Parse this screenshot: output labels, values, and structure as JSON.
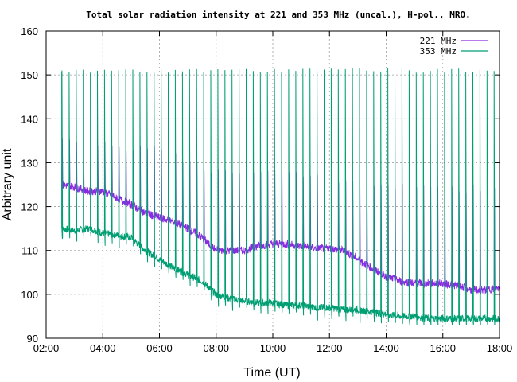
{
  "chart_data": {
    "type": "line",
    "title": "Total solar radiation intensity at 221 and 353 MHz (uncal.), H-pol., MRO.",
    "xlabel": "Time (UT)",
    "ylabel": "Arbitrary unit",
    "xlim": [
      2.0,
      18.0
    ],
    "ylim": [
      90,
      160
    ],
    "xticks": [
      "02:00",
      "04:00",
      "06:00",
      "08:00",
      "10:00",
      "12:00",
      "14:00",
      "16:00",
      "18:00"
    ],
    "yticks": [
      90,
      100,
      110,
      120,
      130,
      140,
      150,
      160
    ],
    "grid": true,
    "legend_position": "top-right",
    "series": [
      {
        "name": "221 MHz",
        "color": "#8a2be2",
        "baseline": [
          [
            2.55,
            125
          ],
          [
            3.0,
            124.5
          ],
          [
            3.5,
            123.5
          ],
          [
            4.0,
            123.5
          ],
          [
            4.5,
            122
          ],
          [
            5.0,
            120.5
          ],
          [
            5.5,
            118.5
          ],
          [
            6.0,
            117.5
          ],
          [
            6.5,
            116.5
          ],
          [
            7.0,
            115
          ],
          [
            7.5,
            113
          ],
          [
            8.0,
            110
          ],
          [
            8.5,
            110
          ],
          [
            9.0,
            110
          ],
          [
            9.5,
            111
          ],
          [
            10.0,
            111.5
          ],
          [
            10.5,
            111.5
          ],
          [
            11.0,
            111
          ],
          [
            11.5,
            110.5
          ],
          [
            12.0,
            110.5
          ],
          [
            12.5,
            110
          ],
          [
            13.0,
            108
          ],
          [
            13.5,
            106
          ],
          [
            14.0,
            104
          ],
          [
            14.5,
            103
          ],
          [
            15.0,
            102.5
          ],
          [
            15.5,
            102.5
          ],
          [
            16.0,
            102.5
          ],
          [
            16.5,
            102
          ],
          [
            17.0,
            101
          ],
          [
            17.5,
            101
          ],
          [
            18.0,
            101.5
          ]
        ],
        "spike_top": [
          [
            2.55,
            136
          ],
          [
            4.0,
            134
          ],
          [
            6.0,
            133
          ],
          [
            7.0,
            130
          ],
          [
            8.0,
            128
          ],
          [
            10.0,
            128
          ],
          [
            12.0,
            126
          ],
          [
            14.0,
            125
          ],
          [
            16.0,
            124
          ],
          [
            18.0,
            124
          ]
        ]
      },
      {
        "name": "353 MHz",
        "color": "#009e73",
        "baseline": [
          [
            2.55,
            115
          ],
          [
            3.0,
            114.5
          ],
          [
            3.5,
            115
          ],
          [
            4.0,
            114
          ],
          [
            4.5,
            113.5
          ],
          [
            5.0,
            113
          ],
          [
            5.5,
            110
          ],
          [
            6.0,
            108
          ],
          [
            6.5,
            106
          ],
          [
            7.0,
            104.5
          ],
          [
            7.5,
            103
          ],
          [
            8.0,
            100
          ],
          [
            8.5,
            99
          ],
          [
            9.0,
            98.5
          ],
          [
            9.5,
            98
          ],
          [
            10.0,
            98
          ],
          [
            10.5,
            97.5
          ],
          [
            11.0,
            97.5
          ],
          [
            11.5,
            97
          ],
          [
            12.0,
            97
          ],
          [
            12.5,
            96.5
          ],
          [
            13.0,
            96.5
          ],
          [
            13.5,
            96
          ],
          [
            14.0,
            95.5
          ],
          [
            14.5,
            95
          ],
          [
            15.0,
            95
          ],
          [
            15.5,
            94.5
          ],
          [
            16.0,
            94.5
          ],
          [
            16.5,
            94.5
          ],
          [
            17.0,
            94.5
          ],
          [
            17.5,
            94.5
          ],
          [
            18.0,
            94.5
          ]
        ],
        "spike_top": 151,
        "spike_bottom": 93
      }
    ]
  }
}
